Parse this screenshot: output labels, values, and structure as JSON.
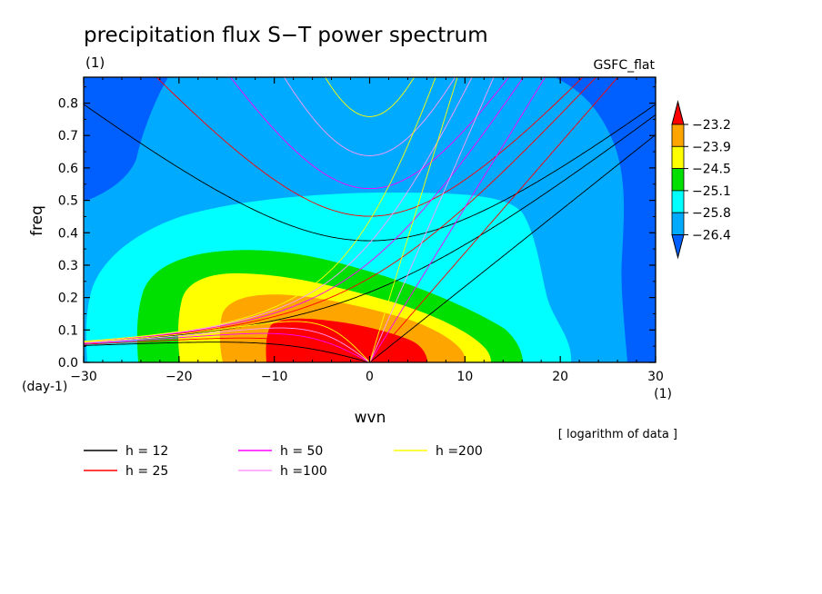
{
  "chart_data": {
    "type": "heatmap",
    "title": "precipitation flux S−T power spectrum",
    "subtitle_left": "(1)",
    "subtitle_right": "GSFC_flat",
    "xlabel": "wvn",
    "ylabel": "freq",
    "x_unit": "(1)",
    "y_unit": "(day-1)",
    "note": "[ logarithm of data ]",
    "xlim": [
      -30,
      30
    ],
    "ylim": [
      0,
      0.88
    ],
    "x_ticks": [
      -30,
      -20,
      -10,
      0,
      10,
      20,
      30
    ],
    "x_tick_labels": [
      "−30",
      "−20",
      "−10",
      "0",
      "10",
      "20",
      "30"
    ],
    "y_ticks": [
      0.0,
      0.1,
      0.2,
      0.3,
      0.4,
      0.5,
      0.6,
      0.7,
      0.8
    ],
    "y_tick_labels": [
      "0.0",
      "0.1",
      "0.2",
      "0.3",
      "0.4",
      "0.5",
      "0.6",
      "0.7",
      "0.8"
    ],
    "colorbar": {
      "levels": [
        "−23.2",
        "−23.9",
        "−24.5",
        "−25.1",
        "−25.8",
        "−26.4"
      ],
      "colors": [
        "#ff0000",
        "#ffa500",
        "#ffff00",
        "#00e000",
        "#00ffff",
        "#00aaff",
        "#0060ff"
      ]
    },
    "dispersion_curves": [
      {
        "label": "h = 12",
        "h": 12,
        "color": "#000000"
      },
      {
        "label": "h = 25",
        "h": 25,
        "color": "#ff0000"
      },
      {
        "label": "h = 50",
        "h": 50,
        "color": "#ff00ff"
      },
      {
        "label": "h =100",
        "h": 100,
        "color": "#ff99ff"
      },
      {
        "label": "h =200",
        "h": 200,
        "color": "#ffff00"
      }
    ]
  }
}
